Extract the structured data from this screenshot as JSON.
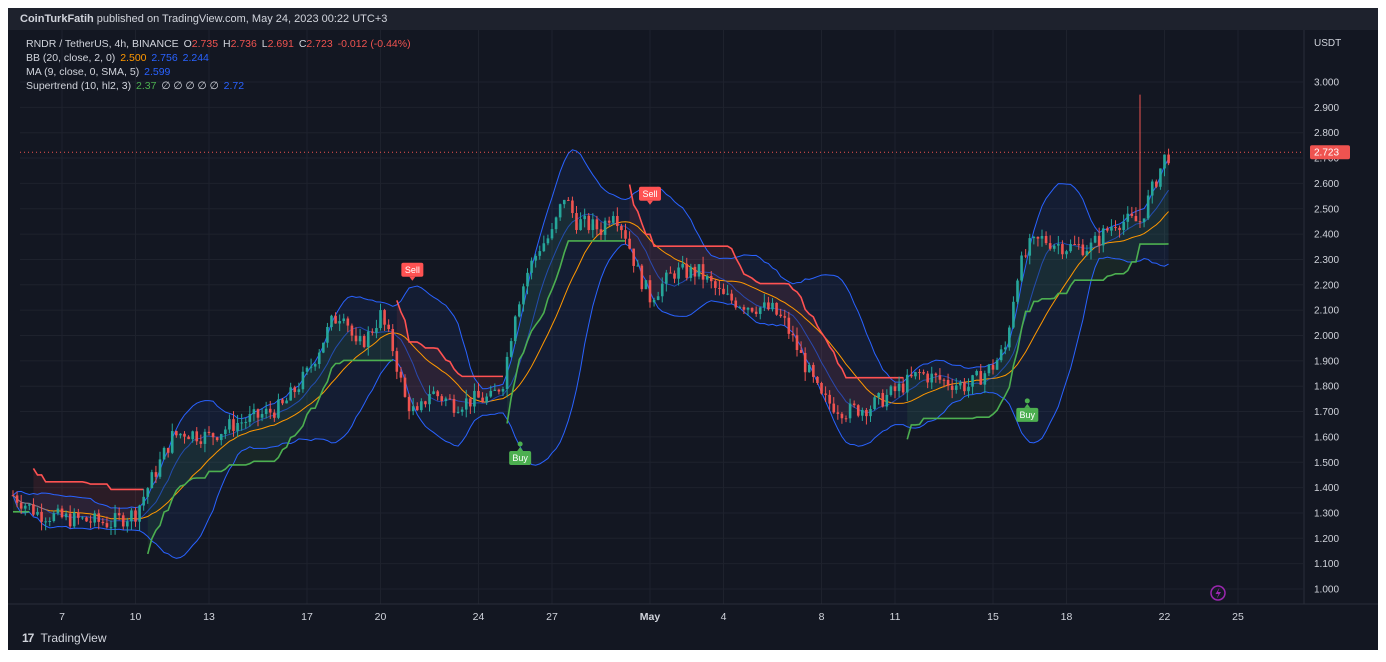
{
  "header": {
    "author": "CoinTurkFatih",
    "published_text": "published on TradingView.com, May 24, 2023 00:22 UTC+3"
  },
  "legend": {
    "line1": {
      "symbol": "RNDR / TetherUS, 4h, BINANCE",
      "o_label": "O",
      "o": "2.735",
      "h_label": "H",
      "h": "2.736",
      "l_label": "L",
      "l": "2.691",
      "c_label": "C",
      "c": "2.723",
      "chg": "-0.012 (-0.44%)"
    },
    "line2": {
      "name": "BB (20, close, 2, 0)",
      "v1": "2.500",
      "v2": "2.756",
      "v3": "2.244"
    },
    "line3": {
      "name": "MA (9, close, 0, SMA, 5)",
      "v1": "2.599"
    },
    "line4": {
      "name": "Supertrend (10, hl2, 3)",
      "v1": "2.37",
      "v2": "∅ ∅ ∅ ∅ ∅",
      "v3": "2.72"
    }
  },
  "footer": {
    "brand": "TradingView",
    "logo": "17"
  },
  "colors": {
    "up": "#26a69a",
    "down": "#ef5350",
    "bb": "#2962ff",
    "ma": "#ff9800",
    "st_up": "#4caf50",
    "st_down": "#ff5252",
    "bg": "#131722"
  },
  "chart_data": {
    "type": "candlestick",
    "title": "RNDR / TetherUS, 4h, BINANCE",
    "y_unit": "USDT",
    "ylim": [
      0.92,
      3.12
    ],
    "y_ticks": [
      "3.000",
      "2.900",
      "2.800",
      "2.700",
      "2.600",
      "2.500",
      "2.400",
      "2.300",
      "2.200",
      "2.100",
      "2.000",
      "1.900",
      "1.800",
      "1.700",
      "1.600",
      "1.500",
      "1.400",
      "1.300",
      "1.200",
      "1.100",
      "1.000"
    ],
    "x_ticks": [
      "7",
      "10",
      "13",
      "17",
      "20",
      "24",
      "27",
      "May",
      "4",
      "8",
      "11",
      "15",
      "18",
      "22",
      "25"
    ],
    "last_price": "2.723",
    "signals": [
      {
        "type": "Sell",
        "label": "Sell",
        "date": "Apr 21",
        "price": 2.2
      },
      {
        "type": "Buy",
        "label": "Buy",
        "date": "Apr 25",
        "price": 1.58
      },
      {
        "type": "Sell",
        "label": "Sell",
        "date": "May 1",
        "price": 2.5
      },
      {
        "type": "Buy",
        "label": "Buy",
        "date": "May 17",
        "price": 1.75
      }
    ],
    "price_path": [
      [
        5,
        1.37
      ],
      [
        6,
        1.3
      ],
      [
        7,
        1.28
      ],
      [
        8,
        1.27
      ],
      [
        9,
        1.26
      ],
      [
        10,
        1.3
      ],
      [
        10.5,
        1.4
      ],
      [
        11,
        1.5
      ],
      [
        11.5,
        1.6
      ],
      [
        12,
        1.62
      ],
      [
        13,
        1.6
      ],
      [
        14,
        1.65
      ],
      [
        15,
        1.68
      ],
      [
        16,
        1.72
      ],
      [
        17,
        1.85
      ],
      [
        18,
        2.05
      ],
      [
        18.5,
        2.1
      ],
      [
        19,
        1.95
      ],
      [
        19.5,
        2.0
      ],
      [
        20,
        2.08
      ],
      [
        20.5,
        1.95
      ],
      [
        21,
        1.75
      ],
      [
        21.5,
        1.68
      ],
      [
        22,
        1.78
      ],
      [
        23,
        1.73
      ],
      [
        24,
        1.75
      ],
      [
        24.5,
        1.75
      ],
      [
        25,
        1.82
      ],
      [
        25.5,
        2.1
      ],
      [
        26,
        2.25
      ],
      [
        26.5,
        2.35
      ],
      [
        27,
        2.4
      ],
      [
        27.5,
        2.55
      ],
      [
        28,
        2.45
      ],
      [
        29,
        2.42
      ],
      [
        29.5,
        2.5
      ],
      [
        30,
        2.4
      ],
      [
        30.5,
        2.25
      ],
      [
        31,
        2.15
      ],
      [
        32,
        2.25
      ],
      [
        33,
        2.25
      ],
      [
        34,
        2.15
      ],
      [
        35,
        2.12
      ],
      [
        36,
        2.1
      ],
      [
        36.5,
        2.05
      ],
      [
        37,
        1.95
      ],
      [
        38,
        1.75
      ],
      [
        39,
        1.7
      ],
      [
        40,
        1.72
      ],
      [
        41,
        1.78
      ],
      [
        42,
        1.85
      ],
      [
        43,
        1.82
      ],
      [
        44,
        1.8
      ],
      [
        45,
        1.88
      ],
      [
        45.5,
        1.95
      ],
      [
        46,
        2.25
      ],
      [
        46.5,
        2.35
      ],
      [
        47,
        2.38
      ],
      [
        48,
        2.35
      ],
      [
        49,
        2.35
      ],
      [
        50,
        2.45
      ],
      [
        51,
        2.45
      ],
      [
        52,
        2.7
      ],
      [
        52.3,
        2.72
      ]
    ]
  }
}
